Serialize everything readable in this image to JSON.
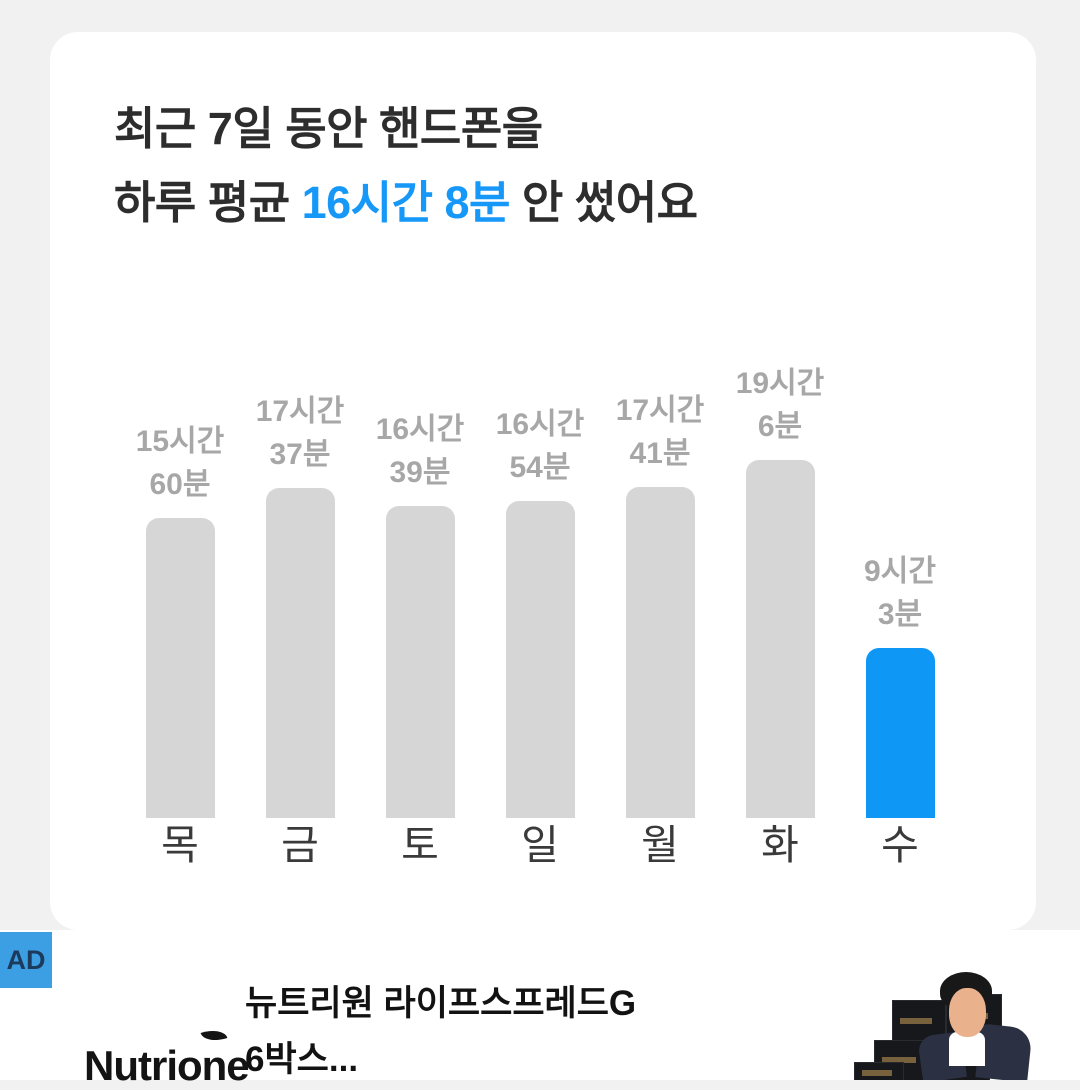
{
  "page": {
    "background": "#f1f1f2"
  },
  "card": {
    "title_line1": "최근 7일 동안 핸드폰을",
    "title_line2_prefix": "하루 평균 ",
    "title_line2_highlight": "16시간 8분",
    "title_line2_suffix": " 안 썼어요"
  },
  "chart_data": {
    "type": "bar",
    "title": "",
    "xlabel": "",
    "ylabel": "",
    "categories": [
      "목",
      "금",
      "토",
      "일",
      "월",
      "화",
      "수"
    ],
    "values_minutes": [
      960,
      1057,
      999,
      1014,
      1061,
      1146,
      543
    ],
    "value_labels": [
      [
        "15시간",
        "60분"
      ],
      [
        "17시간",
        "37분"
      ],
      [
        "16시간",
        "39분"
      ],
      [
        "16시간",
        "54분"
      ],
      [
        "17시간",
        "41분"
      ],
      [
        "19시간",
        "6분"
      ],
      [
        "9시간",
        "3분"
      ]
    ],
    "highlight_index": 6,
    "ylim_minutes": [
      0,
      1200
    ],
    "grid": false,
    "legend": "none",
    "bar_color": "#d6d6d6",
    "highlight_color": "#0f97f6",
    "value_label_color": "#a7a7a7",
    "axis_label_color": "#3a3a3a"
  },
  "ad": {
    "badge_label": "AD",
    "badge_bg": "#3d9fe3",
    "badge_text_color": "#1c3a5c",
    "title_line1": "뉴트리원 라이프스프레드G",
    "title_line2": "6박스...",
    "logo_text": "Nutrione"
  },
  "colors": {
    "accent_blue": "#1698f8",
    "title_text": "#2d2d2d",
    "card_bg": "#ffffff"
  }
}
